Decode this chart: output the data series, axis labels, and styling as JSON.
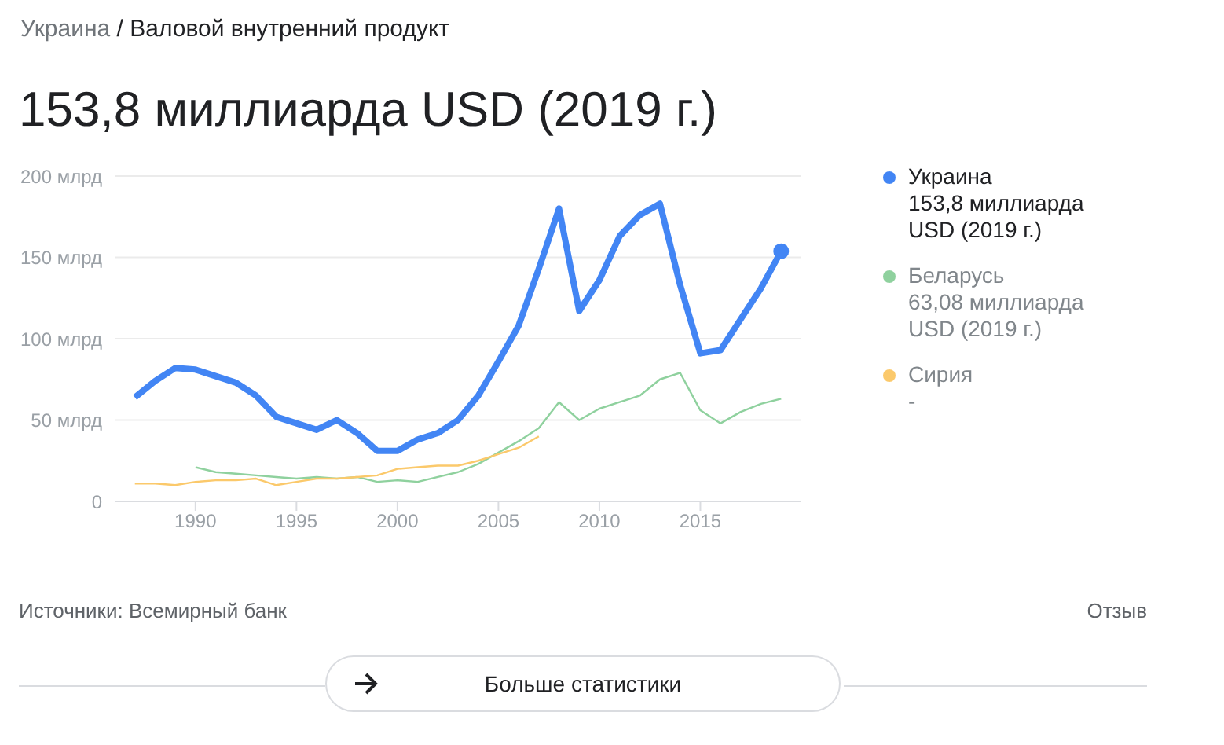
{
  "chart_data": {
    "type": "line",
    "title": "153,8 миллиарда USD (2019 г.)",
    "subtitle": "Украина / Валовой внутренний продукт",
    "series": [
      {
        "name": "Украина",
        "color": "#4285f4",
        "x": [
          1987,
          1988,
          1989,
          1990,
          1991,
          1992,
          1993,
          1994,
          1995,
          1996,
          1997,
          1998,
          1999,
          2000,
          2001,
          2002,
          2003,
          2004,
          2005,
          2006,
          2007,
          2008,
          2009,
          2010,
          2011,
          2012,
          2013,
          2014,
          2015,
          2016,
          2017,
          2018,
          2019
        ],
        "values": [
          64,
          74,
          82,
          81,
          77,
          73,
          65,
          52,
          48,
          44,
          50,
          42,
          31,
          31,
          38,
          42,
          50,
          65,
          86,
          108,
          143,
          180,
          117,
          136,
          163,
          176,
          183,
          133,
          91,
          93,
          112,
          131,
          153.8
        ]
      },
      {
        "name": "Беларусь",
        "color": "#8fd19e",
        "x": [
          1990,
          1991,
          1992,
          1993,
          1994,
          1995,
          1996,
          1997,
          1998,
          1999,
          2000,
          2001,
          2002,
          2003,
          2004,
          2005,
          2006,
          2007,
          2008,
          2009,
          2010,
          2011,
          2012,
          2013,
          2014,
          2015,
          2016,
          2017,
          2018,
          2019
        ],
        "values": [
          21,
          18,
          17,
          16,
          15,
          14,
          15,
          14,
          15,
          12,
          13,
          12,
          15,
          18,
          23,
          30,
          37,
          45,
          61,
          50,
          57,
          61,
          65,
          75,
          79,
          56,
          48,
          55,
          60,
          63.08
        ]
      },
      {
        "name": "Сирия",
        "color": "#fbc96b",
        "x": [
          1987,
          1988,
          1989,
          1990,
          1991,
          1992,
          1993,
          1994,
          1995,
          1996,
          1997,
          1998,
          1999,
          2000,
          2001,
          2002,
          2003,
          2004,
          2005,
          2006,
          2007
        ],
        "values": [
          11,
          11,
          10,
          12,
          13,
          13,
          14,
          10,
          12,
          14,
          14,
          15,
          16,
          20,
          21,
          22,
          22,
          25,
          29,
          33,
          40
        ]
      }
    ],
    "xlim": [
      1986,
      2020
    ],
    "xticks": [
      1990,
      1995,
      2000,
      2005,
      2010,
      2015
    ],
    "ylim": [
      0,
      200
    ],
    "yticks": [
      {
        "value": 0,
        "label": "0"
      },
      {
        "value": 50,
        "label": "50 млрд"
      },
      {
        "value": 100,
        "label": "100 млрд"
      },
      {
        "value": 150,
        "label": "150 млрд"
      },
      {
        "value": 200,
        "label": "200 млрд"
      }
    ],
    "grid": "y",
    "legend": "right",
    "marker": "none",
    "line_style": "solid",
    "annotations": [
      "153,8 миллиарда USD (2019 г.)",
      "63,08 миллиарда USD (2019 г.)",
      "-",
      "Источники: Всемирный банк",
      "Отзыв",
      "Больше статистики"
    ]
  }
}
